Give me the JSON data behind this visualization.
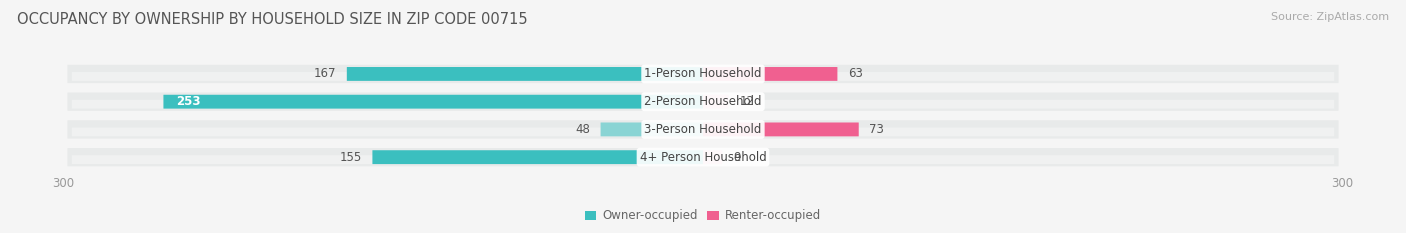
{
  "title": "OCCUPANCY BY OWNERSHIP BY HOUSEHOLD SIZE IN ZIP CODE 00715",
  "source": "Source: ZipAtlas.com",
  "categories": [
    "1-Person Household",
    "2-Person Household",
    "3-Person Household",
    "4+ Person Household"
  ],
  "owner_values": [
    167,
    253,
    48,
    155
  ],
  "renter_values": [
    63,
    12,
    73,
    9
  ],
  "owner_colors": [
    "#3bbfbf",
    "#3bbfbf",
    "#8ad4d4",
    "#3bbfbf"
  ],
  "renter_colors": [
    "#f06090",
    "#f4aac8",
    "#f06090",
    "#f4aac8"
  ],
  "band_color": "#e8eaea",
  "bg_color": "#f5f5f5",
  "label_color_dark": "#555555",
  "label_color_white": "#ffffff",
  "xlim": 300,
  "legend_owner": "Owner-occupied",
  "legend_renter": "Renter-occupied",
  "owner_legend_color": "#3bbfbf",
  "renter_legend_color": "#f06090",
  "title_fontsize": 10.5,
  "source_fontsize": 8,
  "label_fontsize": 8.5,
  "axis_fontsize": 8.5,
  "value_fontsize": 8.5
}
